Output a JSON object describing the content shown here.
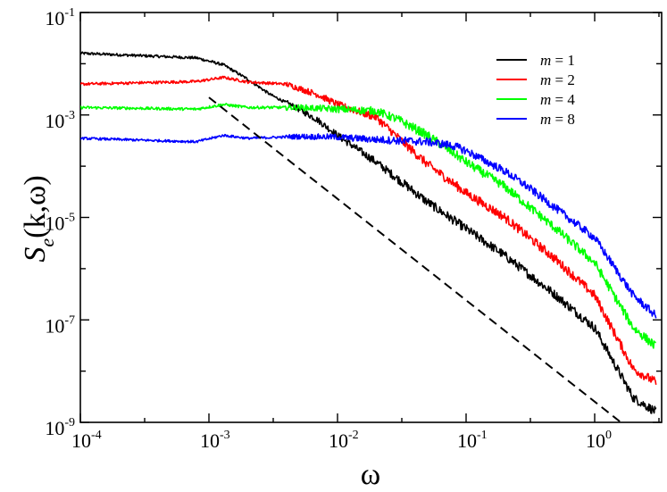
{
  "chart_data": {
    "type": "line",
    "title": "",
    "xlabel": "ω",
    "ylabel": "S_e(k,ω)",
    "ylabel_parts": {
      "main": "S",
      "sub": "e",
      "args": "(k,ω)",
      "italic_k": "k"
    },
    "xscale": "log",
    "yscale": "log",
    "xlim": [
      0.0001,
      3
    ],
    "ylim": [
      1e-09,
      0.1
    ],
    "x_ticks": [
      {
        "base": "10",
        "exp": "-4",
        "value": 0.0001
      },
      {
        "base": "10",
        "exp": "-3",
        "value": 0.001
      },
      {
        "base": "10",
        "exp": "-2",
        "value": 0.01
      },
      {
        "base": "10",
        "exp": "-1",
        "value": 0.1
      },
      {
        "base": "10",
        "exp": "0",
        "value": 1
      }
    ],
    "y_ticks": [
      {
        "base": "10",
        "exp": "-9",
        "value": 1e-09
      },
      {
        "base": "10",
        "exp": "-7",
        "value": 1e-07
      },
      {
        "base": "10",
        "exp": "-5",
        "value": 1e-05
      },
      {
        "base": "10",
        "exp": "-3",
        "value": 0.001
      },
      {
        "base": "10",
        "exp": "-1",
        "value": 0.1
      }
    ],
    "grid": false,
    "legend_position": "top-right",
    "series": [
      {
        "name": "m = 1",
        "legend_var": "m",
        "legend_rest": " = 1",
        "color": "#000000",
        "noise": 0.09,
        "x": [
          0.0001,
          0.0008,
          0.0013,
          0.002,
          0.003,
          0.005,
          0.007,
          0.01,
          0.02,
          0.05,
          0.1,
          0.2,
          0.5,
          1,
          2,
          3
        ],
        "y": [
          0.016,
          0.013,
          0.0095,
          0.005,
          0.0025,
          0.0013,
          0.0008,
          0.0004,
          0.00012,
          2e-05,
          6e-06,
          1.8e-06,
          3e-07,
          7e-08,
          3e-09,
          1.6e-09
        ]
      },
      {
        "name": "m = 2",
        "legend_var": "m",
        "legend_rest": " = 2",
        "color": "#ff0000",
        "noise": 0.09,
        "x": [
          0.0001,
          0.0008,
          0.0013,
          0.002,
          0.004,
          0.007,
          0.01,
          0.02,
          0.03,
          0.05,
          0.1,
          0.2,
          0.5,
          1,
          2,
          3
        ],
        "y": [
          0.004,
          0.0045,
          0.0054,
          0.0044,
          0.004,
          0.0025,
          0.0016,
          0.0009,
          0.00035,
          0.00011,
          3e-05,
          1e-05,
          1.5e-06,
          3e-07,
          1.1e-08,
          6e-09
        ]
      },
      {
        "name": "m = 4",
        "legend_var": "m",
        "legend_rest": " = 4",
        "color": "#00ff00",
        "noise": 0.09,
        "x": [
          0.0001,
          0.0008,
          0.0013,
          0.002,
          0.005,
          0.01,
          0.02,
          0.03,
          0.05,
          0.08,
          0.1,
          0.2,
          0.5,
          1,
          2,
          3
        ],
        "y": [
          0.0014,
          0.0013,
          0.0016,
          0.0014,
          0.0014,
          0.0013,
          0.0012,
          0.0008,
          0.0004,
          0.00018,
          0.00012,
          4e-05,
          6e-06,
          1.3e-06,
          7e-08,
          3e-08
        ]
      },
      {
        "name": "m = 8",
        "legend_var": "m",
        "legend_rest": " = 8",
        "color": "#0000ff",
        "noise": 0.08,
        "x": [
          0.0001,
          0.0008,
          0.0013,
          0.002,
          0.005,
          0.01,
          0.02,
          0.05,
          0.08,
          0.1,
          0.2,
          0.3,
          0.5,
          1,
          2,
          3
        ],
        "y": [
          0.00035,
          0.0003,
          0.0004,
          0.00035,
          0.00038,
          0.00037,
          0.00033,
          0.0003,
          0.00025,
          0.0002,
          8e-05,
          4e-05,
          1.5e-05,
          4e-06,
          3e-07,
          1.2e-07
        ]
      }
    ],
    "reference_line": {
      "style": "dashed",
      "color": "#000000",
      "x": [
        0.001,
        1.6
      ],
      "y": [
        0.0022,
        1e-09
      ]
    }
  }
}
